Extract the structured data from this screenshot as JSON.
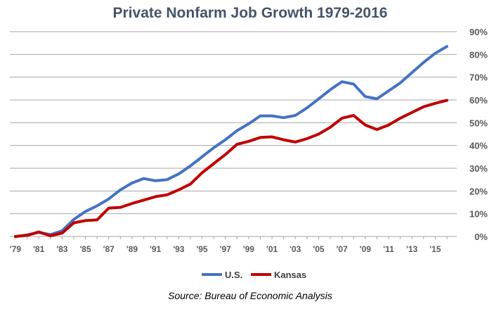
{
  "chart_data": {
    "type": "line",
    "title": "Private Nonfarm Job Growth  1979-2016",
    "source": "Source: Bureau of Economic Analysis",
    "xlabel": "",
    "ylabel": "",
    "x": [
      1979,
      1980,
      1981,
      1982,
      1983,
      1984,
      1985,
      1986,
      1987,
      1988,
      1989,
      1990,
      1991,
      1992,
      1993,
      1994,
      1995,
      1996,
      1997,
      1998,
      1999,
      2000,
      2001,
      2002,
      2003,
      2004,
      2005,
      2006,
      2007,
      2008,
      2009,
      2010,
      2011,
      2012,
      2013,
      2014,
      2015,
      2016
    ],
    "x_tick_labels": [
      "'79",
      "'81",
      "'83",
      "'85",
      "'87",
      "'89",
      "'91",
      "'93",
      "'95",
      "'97",
      "'99",
      "'01",
      "'03",
      "'05",
      "'07",
      "'09",
      "'11",
      "'13",
      "'15"
    ],
    "x_ticks": [
      1979,
      1981,
      1983,
      1985,
      1987,
      1989,
      1991,
      1993,
      1995,
      1997,
      1999,
      2001,
      2003,
      2005,
      2007,
      2009,
      2011,
      2013,
      2015
    ],
    "y_ticks": [
      0,
      10,
      20,
      30,
      40,
      50,
      60,
      70,
      80,
      90
    ],
    "y_tick_labels": [
      "0%",
      "10%",
      "20%",
      "30%",
      "40%",
      "50%",
      "60%",
      "70%",
      "80%",
      "90%"
    ],
    "ylim": [
      0,
      90
    ],
    "y_axis_position": "right",
    "grid": true,
    "legend_position": "bottom",
    "series": [
      {
        "name": "U.S.",
        "color": "#4472c4",
        "values": [
          0,
          0.7,
          1.8,
          0.8,
          2.5,
          7.5,
          11,
          13.5,
          16.5,
          20.5,
          23.5,
          25.5,
          24.5,
          25,
          27.5,
          31,
          35,
          39,
          42.5,
          46.5,
          49.5,
          53,
          53,
          52.2,
          53.2,
          56.5,
          60.5,
          64.5,
          68,
          67,
          61.5,
          60.5,
          64,
          67.5,
          72,
          76.5,
          80.5,
          83.5
        ]
      },
      {
        "name": "Kansas",
        "color": "#c00000",
        "values": [
          0,
          0.5,
          2,
          0.3,
          1.5,
          6,
          7,
          7.3,
          12.5,
          12.8,
          14.5,
          16,
          17.5,
          18.3,
          20.5,
          23,
          28,
          32,
          36,
          40.5,
          41.8,
          43.5,
          43.8,
          42.5,
          41.5,
          43,
          45,
          48,
          52,
          53.2,
          49,
          47,
          49,
          52,
          54.5,
          57,
          58.5,
          59.8
        ]
      }
    ]
  }
}
